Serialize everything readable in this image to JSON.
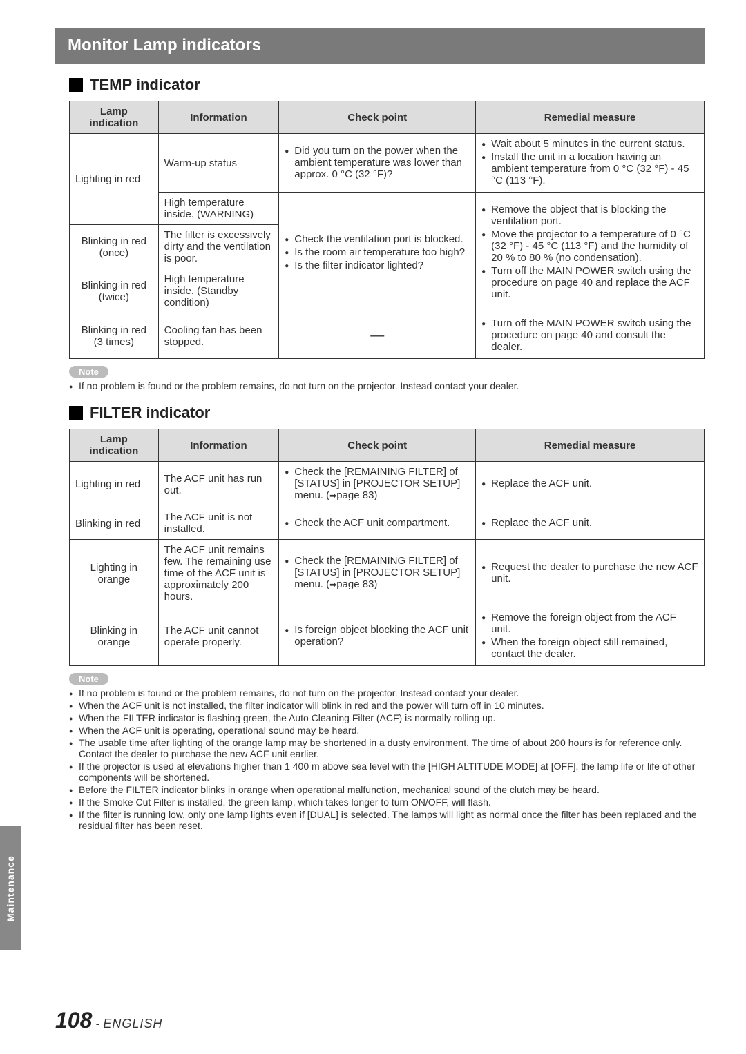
{
  "sectionTitle": "Monitor Lamp indicators",
  "tempHeader": "TEMP indicator",
  "filterHeader": "FILTER indicator",
  "sideTab": "Maintenance",
  "pageNum": "108",
  "pageDash": " - ",
  "pageLang": "ENGLISH",
  "noteLabel": "Note",
  "headers": {
    "lamp": "Lamp indication",
    "info": "Information",
    "check": "Check point",
    "rem": "Remedial measure"
  },
  "tempTable": {
    "r1": {
      "lamp": "Lighting in red",
      "info": "Warm-up status",
      "check1": "Did you turn on the power when the ambient temperature was lower than approx. 0 °C (32 °F)?",
      "rem1": "Wait about 5 minutes in the current status.",
      "rem2": "Install the unit in a location having an ambient temperature from 0 °C (32 °F) - 45 °C (113 °F)."
    },
    "r1b": {
      "info": "High temperature inside. (WARNING)"
    },
    "r2": {
      "lamp": "Blinking in red (once)",
      "info": "The filter is excessively dirty and the ventilation is poor.",
      "check1": "Check the ventilation port is blocked.",
      "check2": "Is the room air temperature too high?",
      "check3": "Is the filter indicator lighted?",
      "rem1": "Remove the object that is blocking the ventilation port.",
      "rem2": "Move the projector to a temperature of 0 °C (32 °F) - 45 °C (113 °F) and the humidity of 20 % to 80 % (no condensation).",
      "rem3": "Turn off the MAIN POWER switch using the procedure on page 40 and replace the ACF unit."
    },
    "r3": {
      "lamp": "Blinking in red (twice)",
      "info": "High temperature inside. (Standby condition)"
    },
    "r4": {
      "lamp": "Blinking in red (3 times)",
      "info": "Cooling fan has been stopped.",
      "check": "—",
      "rem1": "Turn off the MAIN POWER switch using the procedure on page 40 and consult the dealer."
    }
  },
  "tempNote1": "If no problem is found or the problem remains, do not turn on the projector. Instead contact your dealer.",
  "filterTable": {
    "r1": {
      "lamp": "Lighting in red",
      "info": "The ACF unit has run out.",
      "check1": "Check the [REMAINING FILTER] of [STATUS] in [PROJECTOR SETUP] menu. (",
      "check1b": "page 83)",
      "rem1": "Replace the ACF unit."
    },
    "r2": {
      "lamp": "Blinking in red",
      "info": "The ACF unit is not installed.",
      "check1": "Check the ACF unit compartment.",
      "rem1": "Replace the ACF unit."
    },
    "r3": {
      "lamp": "Lighting in orange",
      "info": "The ACF unit remains few. The remaining use time of the ACF unit is approximately 200 hours.",
      "check1": "Check the [REMAINING FILTER] of [STATUS] in [PROJECTOR SETUP] menu. (",
      "check1b": "page 83)",
      "rem1": "Request the dealer to purchase the new ACF unit."
    },
    "r4": {
      "lamp": "Blinking in orange",
      "info": "The ACF unit cannot operate properly.",
      "check1": "Is foreign object blocking the ACF unit operation?",
      "rem1": "Remove the foreign object from the ACF unit.",
      "rem2": "When the foreign object still remained, contact the dealer."
    }
  },
  "filterNotes": {
    "n1": "If no problem is found or the problem remains, do not turn on the projector. Instead contact your dealer.",
    "n2": "When the ACF unit is not installed, the filter indicator will blink in red and the power will turn off in 10 minutes.",
    "n3": "When the FILTER indicator is flashing green, the Auto Cleaning Filter (ACF) is normally rolling up.",
    "n4": "When the ACF unit is operating, operational sound may be heard.",
    "n5": "The usable time after lighting of the orange lamp may be shortened in a dusty environment. The time of about 200 hours is for reference only. Contact the dealer to purchase the new ACF unit earlier.",
    "n6": "If the projector is used at elevations higher than 1 400 m above sea level with the [HIGH ALTITUDE MODE] at [OFF], the lamp life or life of other components will be shortened.",
    "n7": "Before the FILTER indicator blinks in orange when operational malfunction, mechanical sound of the clutch may be heard.",
    "n8": "If the Smoke Cut Filter is installed, the green lamp, which takes longer to turn ON/OFF, will flash.",
    "n9": "If the filter is running low, only one lamp lights even if [DUAL] is selected. The lamps will light as normal once the filter has been replaced and the residual filter has been reset."
  }
}
